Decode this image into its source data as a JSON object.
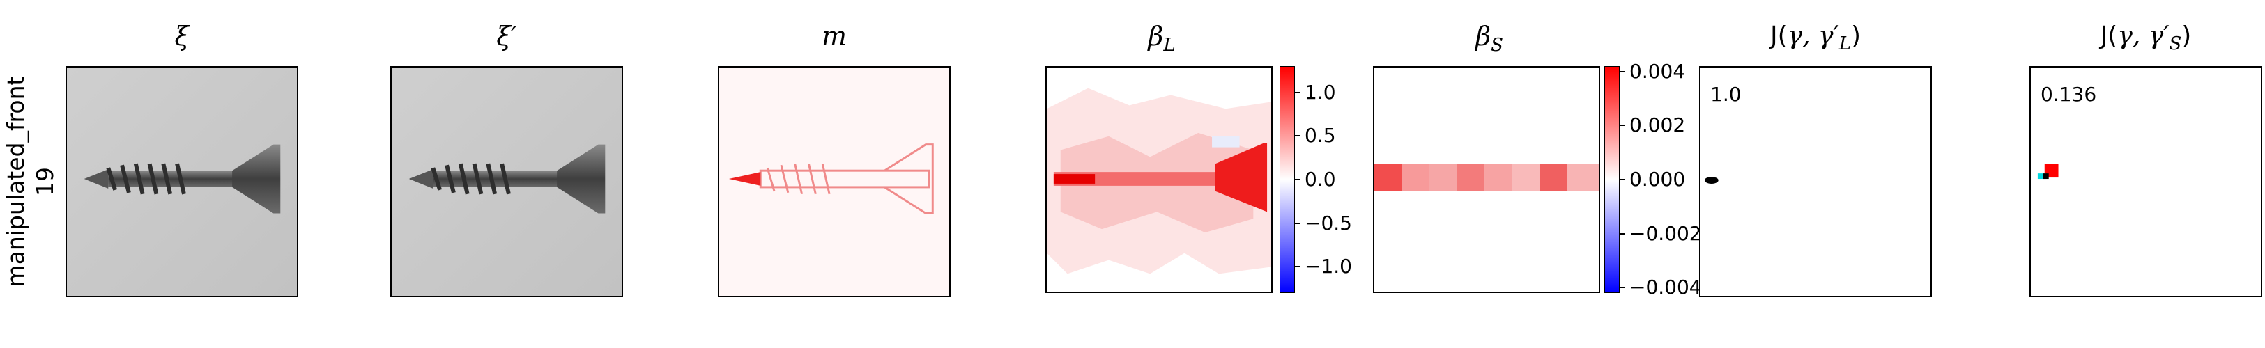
{
  "row_label": {
    "line1": "manipulated_front",
    "line2": "19"
  },
  "panels": {
    "xi": {
      "title_main": "ξ",
      "title_sup": ""
    },
    "xi_prime": {
      "title_main": "ξ′"
    },
    "m": {
      "title_main": "m"
    },
    "beta_L": {
      "title_main": "β",
      "title_sub": "L"
    },
    "beta_S": {
      "title_main": "β",
      "title_sub": "S"
    },
    "J_L": {
      "title_prefix": "J(",
      "title_args": "γ, γ′",
      "title_sub": "L",
      "title_suffix": ")",
      "score": "1.0"
    },
    "J_S": {
      "title_prefix": "J(",
      "title_args": "γ, γ′",
      "title_sub": "S",
      "title_suffix": ")",
      "score": "0.136"
    }
  },
  "colorbars": {
    "beta_L": {
      "ticks": [
        "1.0",
        "0.5",
        "0.0",
        "−0.5",
        "−1.0"
      ],
      "range": [
        -1.3,
        1.3
      ]
    },
    "beta_S": {
      "ticks": [
        "0.004",
        "0.002",
        "0.000",
        "−0.002",
        "−0.004"
      ],
      "range": [
        -0.0042,
        0.0042
      ]
    }
  },
  "colors": {
    "positive": "#ff0000",
    "negative": "#0000ff",
    "neutral": "#ffffff",
    "photo_bg": "#c9c9c9",
    "screw": "#4a4a4a"
  }
}
